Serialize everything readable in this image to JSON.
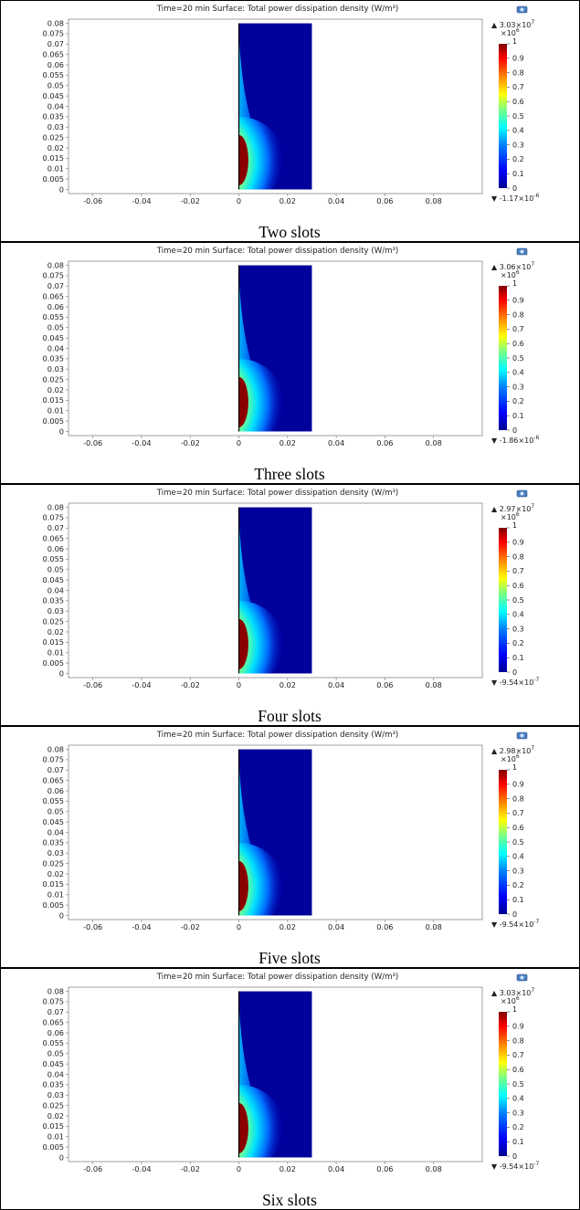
{
  "chart_data": [
    {
      "type": "heatmap",
      "title": "Time=20 min   Surface: Total power dissipation density (W/m³)",
      "caption": "Two slots",
      "x_ticks": [
        "-0.06",
        "-0.04",
        "-0.02",
        "0",
        "0.02",
        "0.04",
        "0.06",
        "0.08"
      ],
      "y_ticks": [
        "0.08",
        "0.075",
        "0.07",
        "0.065",
        "0.06",
        "0.055",
        "0.05",
        "0.045",
        "0.04",
        "0.035",
        "0.03",
        "0.025",
        "0.02",
        "0.015",
        "0.01",
        "0.005",
        "0"
      ],
      "xlim": [
        -0.07,
        0.1
      ],
      "ylim": [
        -0.002,
        0.082
      ],
      "domain": {
        "x": [
          0,
          0.03
        ],
        "y": [
          0,
          0.08
        ]
      },
      "hotspot": {
        "x": 0,
        "y_range": [
          0.008,
          0.03
        ],
        "y_peak": 0.015
      },
      "colorbar": {
        "max": "3.03×10",
        "max_exp": "7",
        "scale": "×10",
        "scale_exp": "6",
        "ticks": [
          "1",
          "0.9",
          "0.8",
          "0.7",
          "0.6",
          "0.5",
          "0.4",
          "0.3",
          "0.2",
          "0.1",
          "0"
        ],
        "min": "-1.17×10",
        "min_exp": "-6"
      }
    },
    {
      "type": "heatmap",
      "title": "Time=20 min   Surface: Total power dissipation density (W/m³)",
      "caption": "Three slots",
      "x_ticks": [
        "-0.06",
        "-0.04",
        "-0.02",
        "0",
        "0.02",
        "0.04",
        "0.06",
        "0.08"
      ],
      "y_ticks": [
        "0.08",
        "0.075",
        "0.07",
        "0.065",
        "0.06",
        "0.055",
        "0.05",
        "0.045",
        "0.04",
        "0.035",
        "0.03",
        "0.025",
        "0.02",
        "0.015",
        "0.01",
        "0.005",
        "0"
      ],
      "xlim": [
        -0.07,
        0.1
      ],
      "ylim": [
        -0.002,
        0.082
      ],
      "domain": {
        "x": [
          0,
          0.03
        ],
        "y": [
          0,
          0.08
        ]
      },
      "hotspot": {
        "x": 0,
        "y_range": [
          0.008,
          0.03
        ],
        "y_peak": 0.015
      },
      "colorbar": {
        "max": "3.06×10",
        "max_exp": "7",
        "scale": "×10",
        "scale_exp": "6",
        "ticks": [
          "1",
          "0.9",
          "0.8",
          "0.7",
          "0.6",
          "0.5",
          "0.4",
          "0.3",
          "0.2",
          "0.1",
          "0"
        ],
        "min": "-1.86×10",
        "min_exp": "-6"
      }
    },
    {
      "type": "heatmap",
      "title": "Time=20 min   Surface: Total power dissipation density (W/m³)",
      "caption": "Four slots",
      "x_ticks": [
        "-0.06",
        "-0.04",
        "-0.02",
        "0",
        "0.02",
        "0.04",
        "0.06",
        "0.08"
      ],
      "y_ticks": [
        "0.08",
        "0.075",
        "0.07",
        "0.065",
        "0.06",
        "0.055",
        "0.05",
        "0.045",
        "0.04",
        "0.035",
        "0.03",
        "0.025",
        "0.02",
        "0.015",
        "0.01",
        "0.005",
        "0"
      ],
      "xlim": [
        -0.07,
        0.1
      ],
      "ylim": [
        -0.002,
        0.082
      ],
      "domain": {
        "x": [
          0,
          0.03
        ],
        "y": [
          0,
          0.08
        ]
      },
      "hotspot": {
        "x": 0,
        "y_range": [
          0.008,
          0.03
        ],
        "y_peak": 0.015
      },
      "colorbar": {
        "max": "2.97×10",
        "max_exp": "7",
        "scale": "×10",
        "scale_exp": "6",
        "ticks": [
          "1",
          "0.9",
          "0.8",
          "0.7",
          "0.6",
          "0.5",
          "0.4",
          "0.3",
          "0.2",
          "0.1",
          "0"
        ],
        "min": "-9.54×10",
        "min_exp": "-7"
      }
    },
    {
      "type": "heatmap",
      "title": "Time=20 min   Surface: Total power dissipation density (W/m³)",
      "caption": "Five slots",
      "x_ticks": [
        "-0.06",
        "-0.04",
        "-0.02",
        "0",
        "0.02",
        "0.04",
        "0.06",
        "0.08"
      ],
      "y_ticks": [
        "0.08",
        "0.075",
        "0.07",
        "0.065",
        "0.06",
        "0.055",
        "0.05",
        "0.045",
        "0.04",
        "0.035",
        "0.03",
        "0.025",
        "0.02",
        "0.015",
        "0.01",
        "0.005",
        "0"
      ],
      "xlim": [
        -0.07,
        0.1
      ],
      "ylim": [
        -0.002,
        0.082
      ],
      "domain": {
        "x": [
          0,
          0.03
        ],
        "y": [
          0,
          0.08
        ]
      },
      "hotspot": {
        "x": 0,
        "y_range": [
          0.008,
          0.03
        ],
        "y_peak": 0.015
      },
      "colorbar": {
        "max": "2.98×10",
        "max_exp": "7",
        "scale": "×10",
        "scale_exp": "6",
        "ticks": [
          "1",
          "0.9",
          "0.8",
          "0.7",
          "0.6",
          "0.5",
          "0.4",
          "0.3",
          "0.2",
          "0.1",
          "0"
        ],
        "min": "-9.54×10",
        "min_exp": "-7"
      }
    },
    {
      "type": "heatmap",
      "title": "Time=20 min   Surface: Total power dissipation density (W/m³)",
      "caption": "Six slots",
      "x_ticks": [
        "-0.06",
        "-0.04",
        "-0.02",
        "0",
        "0.02",
        "0.04",
        "0.06",
        "0.08"
      ],
      "y_ticks": [
        "0.08",
        "0.075",
        "0.07",
        "0.065",
        "0.06",
        "0.055",
        "0.05",
        "0.045",
        "0.04",
        "0.035",
        "0.03",
        "0.025",
        "0.02",
        "0.015",
        "0.01",
        "0.005",
        "0"
      ],
      "xlim": [
        -0.07,
        0.1
      ],
      "ylim": [
        -0.002,
        0.082
      ],
      "domain": {
        "x": [
          0,
          0.03
        ],
        "y": [
          0,
          0.08
        ]
      },
      "hotspot": {
        "x": 0,
        "y_range": [
          0.008,
          0.03
        ],
        "y_peak": 0.015
      },
      "colorbar": {
        "max": "3.03×10",
        "max_exp": "7",
        "scale": "×10",
        "scale_exp": "6",
        "ticks": [
          "1",
          "0.9",
          "0.8",
          "0.7",
          "0.6",
          "0.5",
          "0.4",
          "0.3",
          "0.2",
          "0.1",
          "0"
        ],
        "min": "-9.54×10",
        "min_exp": "-7"
      }
    }
  ],
  "colors": {
    "rainbow": [
      "#00008f",
      "#0000ff",
      "#0080ff",
      "#00ffff",
      "#80ff80",
      "#ffff00",
      "#ff8000",
      "#ff0000",
      "#800000"
    ],
    "frame": "#000000",
    "axes": "#888888"
  },
  "icons": {
    "camera": "camera-icon"
  }
}
